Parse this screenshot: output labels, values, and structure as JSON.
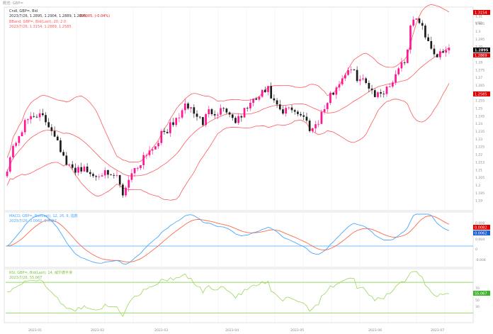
{
  "app": {
    "title": "概览: GBP="
  },
  "colors": {
    "background": "#ffffff",
    "bull": "#ff1493",
    "bear": "#1a1a1a",
    "bollinger": "#ff5a5a",
    "macd_line": "#4aa8ff",
    "signal_line": "#ff6a4a",
    "zero_line": "#4aa8ff",
    "rsi_line": "#9bd65a",
    "rsi_band": "#6fcf3a",
    "badge_black": "#000000",
    "badge_red": "#e00000",
    "badge_blue": "#1f5fd6",
    "badge_green": "#3fb32e"
  },
  "price_panel": {
    "legend": {
      "series_name": "Cndl, GBP=, Bid",
      "ohlc_line": "2023/7/26, 1.2895, 1.2904, 1.2889, 1.2895,",
      "change": "-0.0005, (-0.04%)",
      "bband_name": "BBand, GBP=, Bid(Last), 20, 2.0",
      "bband_values": "2023/7/26, 1.3154, 1.2869, 1.2585"
    },
    "axis_labels": [
      "1.315",
      "1.31",
      "1.305",
      "1.3",
      "1.295",
      "1.29",
      "1.285",
      "1.28",
      "1.275",
      "1.27",
      "1.265",
      "1.26",
      "1.255",
      "1.25",
      "1.245",
      "1.24",
      "1.235",
      "1.23",
      "1.225",
      "1.22",
      "1.215",
      "1.21",
      "1.205",
      "1.2",
      "1.195",
      "1.19",
      "1.185"
    ],
    "currency": "USD",
    "last_price_badge": "1.2895",
    "upper_band_badge": "1.3154",
    "middle_band_badge": "1.2869",
    "lower_band_badge": "1.2585"
  },
  "macd_panel": {
    "legend": {
      "name": "MACD, GBP=, Bid(Last), 12, 26, 9, 指数",
      "values": "2023/7/26, 0.0062, 0.0082"
    },
    "axis_labels": [
      "0.008",
      "0.004",
      "0",
      "-0.004"
    ],
    "badges": [
      "0.0082",
      "0.0062"
    ]
  },
  "rsi_panel": {
    "legend": {
      "name": "RSI, GBP=, Bid(Last), 14, 威尔德平滑",
      "values": "2023/7/26, 55.067"
    },
    "axis_labels": [
      "70",
      "50",
      "30"
    ],
    "badge": "55.067"
  },
  "x_axis": {
    "labels": [
      "2023-01",
      "2023-02",
      "2023-03",
      "2023-04",
      "2023-05",
      "2023-06",
      "2023-07"
    ]
  },
  "chart_data": [
    {
      "type": "candlestick",
      "title": "Cndl, GBP=, Bid",
      "ylim": [
        1.185,
        1.315
      ],
      "bands": {
        "upper_last": 1.3154,
        "middle_last": 1.2869,
        "lower_last": 1.2585
      },
      "close_path": [
        1.212,
        1.227,
        1.236,
        1.244,
        1.247,
        1.243,
        1.238,
        1.23,
        1.214,
        1.21,
        1.212,
        1.209,
        1.206,
        1.21,
        1.204,
        1.207,
        1.194,
        1.208,
        1.212,
        1.221,
        1.224,
        1.231,
        1.236,
        1.24,
        1.248,
        1.252,
        1.246,
        1.241,
        1.249,
        1.248,
        1.251,
        1.244,
        1.242,
        1.251,
        1.254,
        1.259,
        1.262,
        1.252,
        1.246,
        1.251,
        1.248,
        1.244,
        1.236,
        1.243,
        1.252,
        1.261,
        1.268,
        1.276,
        1.272,
        1.268,
        1.265,
        1.258,
        1.262,
        1.266,
        1.277,
        1.282,
        1.31,
        1.305,
        1.296,
        1.286,
        1.284,
        1.2895
      ]
    },
    {
      "type": "line",
      "title": "MACD, GBP=, Bid(Last), 12, 26, 9",
      "ylim": [
        -0.006,
        0.01
      ],
      "last_values": {
        "macd": 0.0062,
        "signal": 0.0082
      }
    },
    {
      "type": "line",
      "title": "RSI, GBP=, Bid(Last), 14",
      "ylim": [
        20,
        85
      ],
      "levels": [
        70,
        30
      ],
      "last_value": 55.067
    }
  ]
}
